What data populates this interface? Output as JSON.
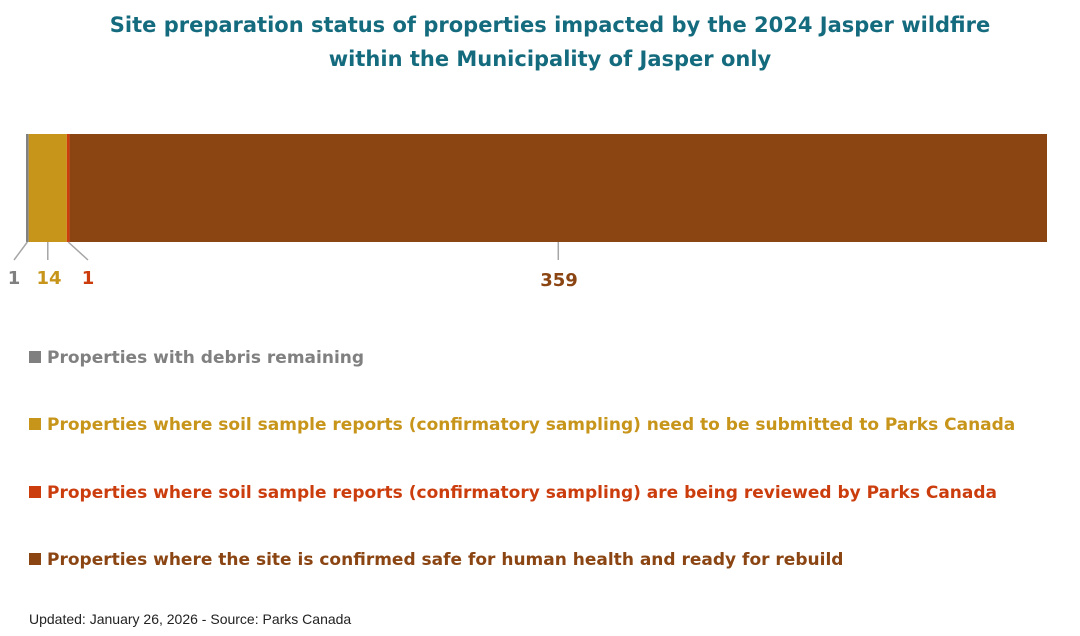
{
  "chart_data": {
    "type": "bar",
    "orientation": "horizontal",
    "stacked": true,
    "title_line1": "Site preparation status of properties impacted by the 2024 Jasper wildfire",
    "title_line2": "within the Municipality of Jasper only",
    "categories": [
      ""
    ],
    "series": [
      {
        "name": "Properties with debris remaining",
        "values": [
          1
        ],
        "color": "#808080"
      },
      {
        "name": "Properties where soil sample reports (confirmatory sampling) need to be submitted to Parks Canada",
        "values": [
          14
        ],
        "color": "#c8951b"
      },
      {
        "name": "Properties where soil sample reports (confirmatory sampling) are being reviewed by Parks Canada",
        "values": [
          1
        ],
        "color": "#cc3d0e"
      },
      {
        "name": "Properties where the site is confirmed safe for human health and ready for rebuild",
        "values": [
          359
        ],
        "color": "#8b4513"
      }
    ],
    "data_labels": [
      "1",
      "14",
      "1",
      "359"
    ],
    "legend_position": "bottom",
    "grid": false
  },
  "footer": {
    "updated": "Updated: January 26, 2026",
    "separator": "-",
    "source": "Source: Parks Canada"
  }
}
